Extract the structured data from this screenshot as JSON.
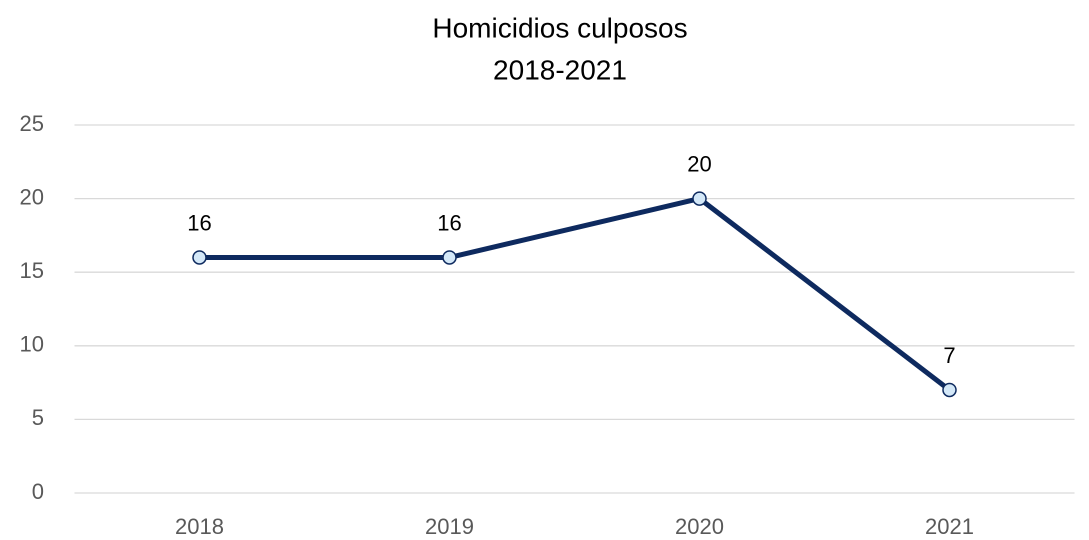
{
  "chart_data": {
    "type": "line",
    "title": "Homicidios culposos",
    "subtitle": "2018-2021",
    "categories": [
      "2018",
      "2019",
      "2020",
      "2021"
    ],
    "series": [
      {
        "name": "Homicidios culposos",
        "color": "#0e2a5f",
        "values": [
          16,
          16,
          20,
          7
        ]
      }
    ],
    "ylim": [
      0,
      25
    ],
    "yticks": [
      0,
      5,
      10,
      15,
      20,
      25
    ],
    "grid": true
  }
}
